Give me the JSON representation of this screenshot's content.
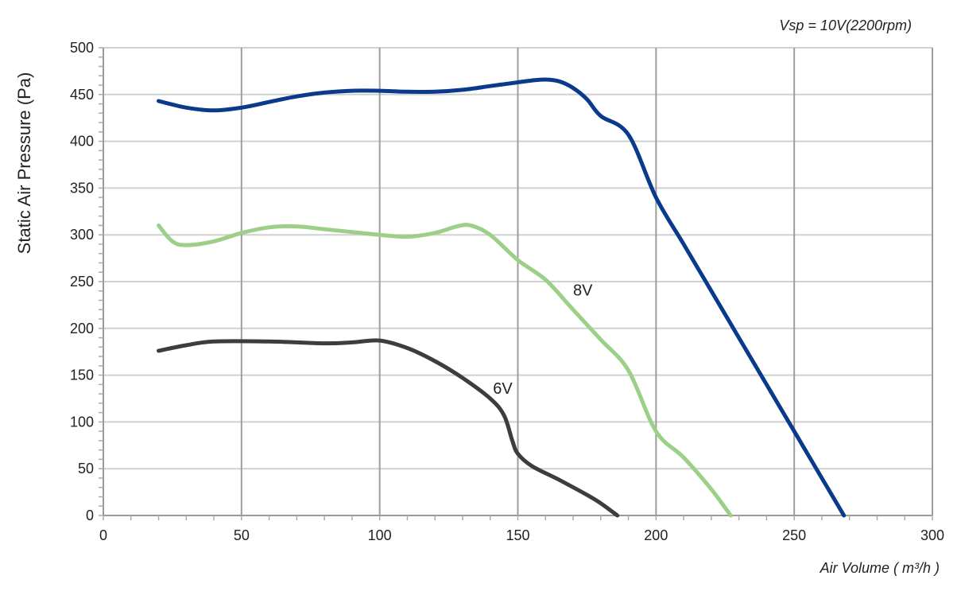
{
  "chart_data": {
    "type": "line",
    "title": "",
    "annotation": "Vsp = 10V(2200rpm)",
    "xlabel": "Air Volume ( m³/h )",
    "ylabel": "Static Air Pressure  (Pa)",
    "xlim": [
      0,
      300
    ],
    "ylim": [
      0,
      500
    ],
    "x_ticks": [
      0,
      50,
      100,
      150,
      200,
      250,
      300
    ],
    "y_ticks": [
      0,
      50,
      100,
      150,
      200,
      250,
      300,
      350,
      400,
      450,
      500
    ],
    "x_tick_labels": [
      "0",
      "50",
      "100",
      "150",
      "200",
      "250",
      "300"
    ],
    "y_tick_labels": [
      "0",
      "50",
      "100",
      "150",
      "200",
      "250",
      "300",
      "350",
      "400",
      "450",
      "500"
    ],
    "grid": {
      "vertical": true,
      "horizontal": true
    },
    "series": [
      {
        "name": "",
        "color": "#0a3a8c",
        "points": [
          [
            20,
            443
          ],
          [
            30,
            436
          ],
          [
            40,
            433
          ],
          [
            50,
            436
          ],
          [
            60,
            442
          ],
          [
            70,
            448
          ],
          [
            80,
            452
          ],
          [
            90,
            454
          ],
          [
            100,
            454
          ],
          [
            110,
            453
          ],
          [
            120,
            453
          ],
          [
            130,
            455
          ],
          [
            140,
            459
          ],
          [
            150,
            463
          ],
          [
            155,
            465
          ],
          [
            160,
            466
          ],
          [
            165,
            464
          ],
          [
            170,
            457
          ],
          [
            175,
            445
          ],
          [
            180,
            427
          ],
          [
            190,
            407
          ],
          [
            200,
            340
          ],
          [
            210,
            290
          ],
          [
            220,
            240
          ],
          [
            230,
            190
          ],
          [
            240,
            140
          ],
          [
            250,
            90
          ],
          [
            260,
            40
          ],
          [
            268,
            0
          ]
        ]
      },
      {
        "name": "8V",
        "color": "#9ccf87",
        "points": [
          [
            20,
            310
          ],
          [
            25,
            293
          ],
          [
            30,
            289
          ],
          [
            40,
            293
          ],
          [
            50,
            302
          ],
          [
            60,
            308
          ],
          [
            70,
            309
          ],
          [
            80,
            306
          ],
          [
            90,
            303
          ],
          [
            100,
            300
          ],
          [
            110,
            298
          ],
          [
            120,
            302
          ],
          [
            128,
            309
          ],
          [
            133,
            310
          ],
          [
            140,
            300
          ],
          [
            150,
            273
          ],
          [
            160,
            252
          ],
          [
            170,
            220
          ],
          [
            180,
            188
          ],
          [
            190,
            155
          ],
          [
            200,
            90
          ],
          [
            210,
            62
          ],
          [
            220,
            28
          ],
          [
            227,
            0
          ]
        ]
      },
      {
        "name": "6V",
        "color": "#3d3d3d",
        "points": [
          [
            20,
            176
          ],
          [
            30,
            182
          ],
          [
            40,
            186
          ],
          [
            60,
            186
          ],
          [
            80,
            184
          ],
          [
            90,
            185
          ],
          [
            100,
            187
          ],
          [
            110,
            179
          ],
          [
            120,
            165
          ],
          [
            130,
            147
          ],
          [
            140,
            125
          ],
          [
            145,
            107
          ],
          [
            148,
            80
          ],
          [
            150,
            66
          ],
          [
            155,
            53
          ],
          [
            165,
            38
          ],
          [
            175,
            22
          ],
          [
            180,
            13
          ],
          [
            186,
            0
          ]
        ]
      }
    ],
    "series_labels": [
      {
        "text": "8V",
        "x": 170,
        "y": 235
      },
      {
        "text": "6V",
        "x": 141,
        "y": 130
      }
    ]
  }
}
